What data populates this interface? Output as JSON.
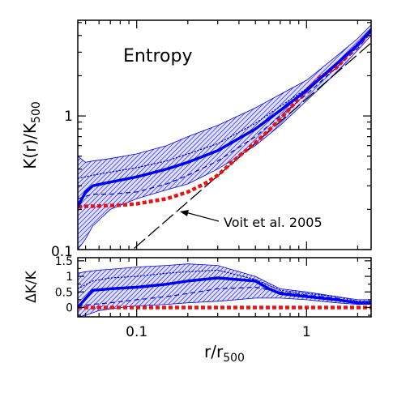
{
  "chart_data": [
    {
      "type": "line",
      "panel": "top",
      "title": "Entropy",
      "xlabel": "r/r",
      "xlabel_sub": "500",
      "ylabel": "K(r)/K",
      "ylabel_sub": "500",
      "xscale": "log",
      "yscale": "log",
      "xlim": [
        0.045,
        2.4
      ],
      "ylim": [
        0.1,
        5.2
      ],
      "x_ticks": [
        {
          "value": 0.1,
          "label": "0.1"
        },
        {
          "value": 1,
          "label": "1"
        }
      ],
      "y_ticks": [
        {
          "value": 0.1,
          "label": "0.1"
        },
        {
          "value": 1,
          "label": "1"
        }
      ],
      "grid": false,
      "annotations": [
        {
          "text": "Voit et al. 2005",
          "arrow_to": [
            0.2,
            0.26
          ]
        }
      ],
      "series": [
        {
          "role": "band",
          "color": "#0000ee",
          "x": [
            0.045,
            0.05,
            0.055,
            0.07,
            0.1,
            0.15,
            0.2,
            0.3,
            0.5,
            0.7,
            1.0,
            1.5,
            2.0,
            2.4
          ],
          "y_low": [
            0.1,
            0.12,
            0.15,
            0.2,
            0.24,
            0.28,
            0.31,
            0.4,
            0.6,
            0.85,
            1.3,
            2.1,
            3.1,
            4.0
          ],
          "y_high": [
            0.5,
            0.45,
            0.46,
            0.48,
            0.52,
            0.6,
            0.7,
            0.85,
            1.15,
            1.45,
            1.85,
            2.8,
            3.8,
            4.8
          ]
        },
        {
          "role": "median",
          "color": "#0000ee",
          "line_style": "solid",
          "x": [
            0.045,
            0.05,
            0.055,
            0.07,
            0.1,
            0.15,
            0.2,
            0.3,
            0.5,
            0.7,
            1.0,
            1.5,
            2.0,
            2.4
          ],
          "y": [
            0.21,
            0.27,
            0.3,
            0.32,
            0.35,
            0.4,
            0.45,
            0.55,
            0.8,
            1.1,
            1.55,
            2.45,
            3.4,
            4.4
          ]
        },
        {
          "role": "mean",
          "color": "#0000ee",
          "line_style": "dotted",
          "x": [
            0.045,
            0.055,
            0.07,
            0.1,
            0.15,
            0.2,
            0.3,
            0.5,
            0.7,
            1.0,
            1.5,
            2.0,
            2.4
          ],
          "y": [
            0.34,
            0.36,
            0.38,
            0.41,
            0.46,
            0.52,
            0.62,
            0.88,
            1.18,
            1.6,
            2.5,
            3.45,
            4.5
          ]
        },
        {
          "role": "lower",
          "color": "#0000ee",
          "line_style": "dashed",
          "x": [
            0.045,
            0.055,
            0.07,
            0.1,
            0.15,
            0.2,
            0.3,
            0.5,
            0.7,
            1.0,
            1.5,
            2.0,
            2.4
          ],
          "y": [
            0.24,
            0.26,
            0.26,
            0.27,
            0.31,
            0.36,
            0.46,
            0.7,
            1.0,
            1.45,
            2.3,
            3.2,
            4.2
          ]
        },
        {
          "role": "comparison",
          "color": "#ee1111",
          "line_style": "thick-dashed",
          "x": [
            0.045,
            0.06,
            0.08,
            0.1,
            0.15,
            0.2,
            0.25,
            0.3,
            0.4,
            0.5,
            0.6,
            0.7,
            1.0,
            1.2,
            1.5,
            2.0,
            2.4
          ],
          "y": [
            0.21,
            0.212,
            0.215,
            0.22,
            0.24,
            0.27,
            0.31,
            0.36,
            0.5,
            0.63,
            0.78,
            0.95,
            1.55,
            1.95,
            2.3,
            3.4,
            4.3
          ]
        },
        {
          "role": "baseline",
          "color": "#000000",
          "line_style": "long-dash",
          "x": [
            0.045,
            2.4
          ],
          "y": [
            0.044,
            3.52
          ]
        }
      ]
    },
    {
      "type": "line",
      "panel": "bottom",
      "xlabel": "r/r",
      "xlabel_sub": "500",
      "ylabel": "ΔK/K",
      "xscale": "log",
      "yscale": "linear",
      "xlim": [
        0.045,
        2.4
      ],
      "ylim": [
        -0.3,
        1.6
      ],
      "x_ticks": [
        {
          "value": 0.1,
          "label": "0.1"
        },
        {
          "value": 1,
          "label": "1"
        }
      ],
      "y_ticks": [
        {
          "value": 0,
          "label": "0"
        },
        {
          "value": 0.5,
          "label": "0.5"
        },
        {
          "value": 1,
          "label": "1"
        },
        {
          "value": 1.5,
          "label": "1.5"
        }
      ],
      "grid": false,
      "series": [
        {
          "role": "band",
          "color": "#0000ee",
          "x": [
            0.045,
            0.05,
            0.06,
            0.08,
            0.1,
            0.15,
            0.2,
            0.3,
            0.5,
            0.7,
            1.0,
            1.5,
            2.0,
            2.4
          ],
          "y_low": [
            -0.3,
            -0.25,
            -0.1,
            0.0,
            0.05,
            0.1,
            0.15,
            0.2,
            0.3,
            0.3,
            0.25,
            0.15,
            0.1,
            0.1
          ],
          "y_high": [
            1.1,
            1.15,
            1.2,
            1.25,
            1.3,
            1.35,
            1.4,
            1.35,
            1.0,
            0.6,
            0.5,
            0.35,
            0.25,
            0.25
          ]
        },
        {
          "role": "median",
          "color": "#0000ee",
          "line_style": "solid",
          "x": [
            0.045,
            0.055,
            0.07,
            0.1,
            0.15,
            0.2,
            0.3,
            0.5,
            0.6,
            0.7,
            1.0,
            1.5,
            2.0,
            2.4
          ],
          "y": [
            0.0,
            0.55,
            0.6,
            0.65,
            0.75,
            0.85,
            0.95,
            0.85,
            0.6,
            0.45,
            0.35,
            0.25,
            0.15,
            0.15
          ]
        },
        {
          "role": "mean",
          "color": "#0000ee",
          "line_style": "dotted",
          "x": [
            0.045,
            0.055,
            0.07,
            0.1,
            0.15,
            0.2,
            0.3,
            0.5,
            0.7,
            1.0,
            1.5,
            2.0,
            2.4
          ],
          "y": [
            0.6,
            0.85,
            0.95,
            1.0,
            1.1,
            1.15,
            1.2,
            0.9,
            0.55,
            0.45,
            0.35,
            0.2,
            0.2
          ]
        },
        {
          "role": "lower",
          "color": "#0000ee",
          "line_style": "dashed",
          "x": [
            0.045,
            0.055,
            0.07,
            0.1,
            0.15,
            0.2,
            0.3,
            0.5,
            0.7,
            1.0,
            1.5,
            2.0,
            2.4
          ],
          "y": [
            0.05,
            0.1,
            0.15,
            0.25,
            0.35,
            0.45,
            0.6,
            0.65,
            0.5,
            0.4,
            0.3,
            0.15,
            0.15
          ]
        },
        {
          "role": "comparison",
          "color": "#ee1111",
          "line_style": "thick-dashed",
          "x": [
            0.045,
            2.4
          ],
          "y": [
            0.0,
            0.0
          ]
        }
      ]
    }
  ]
}
